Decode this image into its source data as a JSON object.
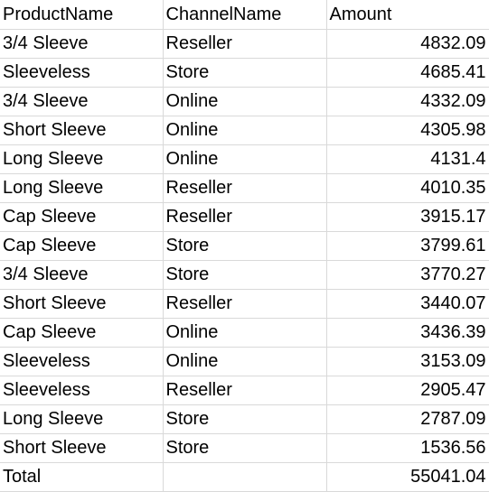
{
  "headers": [
    "ProductName",
    "ChannelName",
    "Amount"
  ],
  "rows": [
    {
      "product": "3/4 Sleeve",
      "channel": "Reseller",
      "amount": "4832.09"
    },
    {
      "product": "Sleeveless",
      "channel": "Store",
      "amount": "4685.41"
    },
    {
      "product": "3/4 Sleeve",
      "channel": "Online",
      "amount": "4332.09"
    },
    {
      "product": "Short Sleeve",
      "channel": "Online",
      "amount": "4305.98"
    },
    {
      "product": "Long Sleeve",
      "channel": "Online",
      "amount": "4131.4"
    },
    {
      "product": "Long Sleeve",
      "channel": "Reseller",
      "amount": "4010.35"
    },
    {
      "product": "Cap Sleeve",
      "channel": "Reseller",
      "amount": "3915.17"
    },
    {
      "product": "Cap Sleeve",
      "channel": "Store",
      "amount": "3799.61"
    },
    {
      "product": "3/4 Sleeve",
      "channel": "Store",
      "amount": "3770.27"
    },
    {
      "product": "Short Sleeve",
      "channel": "Reseller",
      "amount": "3440.07"
    },
    {
      "product": "Cap Sleeve",
      "channel": "Online",
      "amount": "3436.39"
    },
    {
      "product": "Sleeveless",
      "channel": "Online",
      "amount": "3153.09"
    },
    {
      "product": "Sleeveless",
      "channel": "Reseller",
      "amount": "2905.47"
    },
    {
      "product": "Long Sleeve",
      "channel": "Store",
      "amount": "2787.09"
    },
    {
      "product": "Short Sleeve",
      "channel": "Store",
      "amount": "1536.56"
    }
  ],
  "total": {
    "label": "Total",
    "channel": "",
    "amount": "55041.04"
  },
  "colors": {
    "gridline": "#d9d9d9",
    "text": "#000000",
    "background": "#ffffff"
  }
}
